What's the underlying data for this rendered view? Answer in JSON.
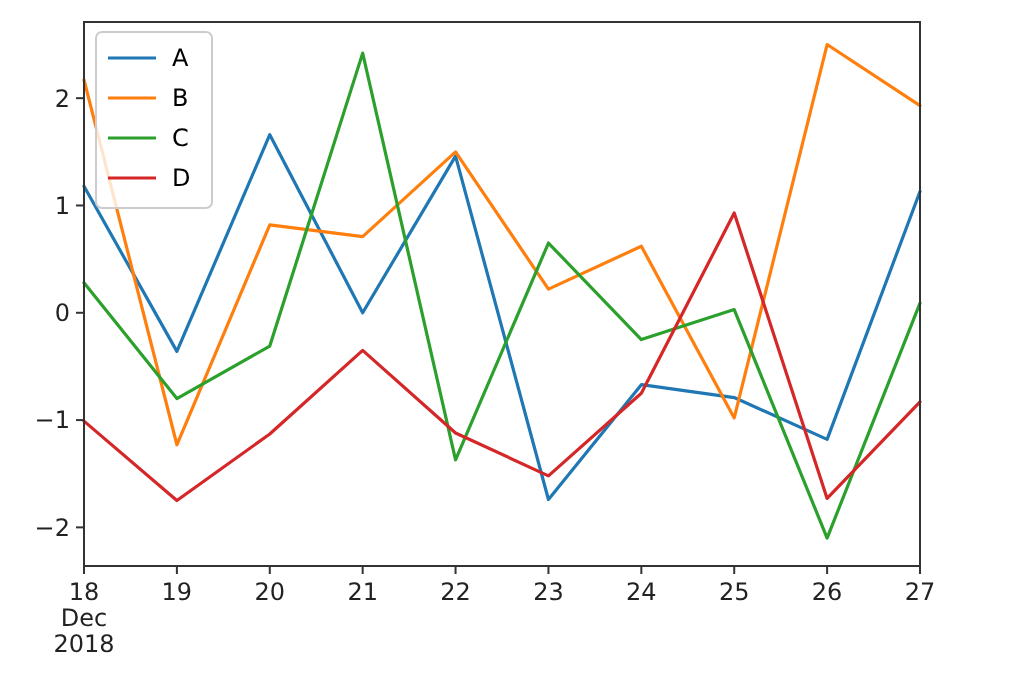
{
  "chart_data": {
    "type": "line",
    "x": [
      "2018-12-18",
      "2018-12-19",
      "2018-12-20",
      "2018-12-21",
      "2018-12-22",
      "2018-12-23",
      "2018-12-24",
      "2018-12-25",
      "2018-12-26",
      "2018-12-27"
    ],
    "series": [
      {
        "name": "A",
        "color": "#1f77b4",
        "values": [
          1.18,
          -0.36,
          1.66,
          0.0,
          1.46,
          -1.74,
          -0.67,
          -0.79,
          -1.18,
          1.13
        ]
      },
      {
        "name": "B",
        "color": "#ff7f0e",
        "values": [
          2.17,
          -1.23,
          0.82,
          0.71,
          1.5,
          0.22,
          0.62,
          -0.98,
          2.5,
          1.93
        ]
      },
      {
        "name": "C",
        "color": "#2ca02c",
        "values": [
          0.28,
          -0.8,
          -0.31,
          2.42,
          -1.37,
          0.65,
          -0.25,
          0.03,
          -2.1,
          0.09
        ]
      },
      {
        "name": "D",
        "color": "#d62728",
        "values": [
          -1.01,
          -1.75,
          -1.13,
          -0.35,
          -1.12,
          -1.52,
          -0.75,
          0.93,
          -1.73,
          -0.83
        ]
      }
    ],
    "xlim": [
      "2018-12-18",
      "2018-12-27"
    ],
    "xticks": [
      {
        "value": "2018-12-18",
        "label": "18\nDec\n2018"
      },
      {
        "value": "2018-12-19",
        "label": "19"
      },
      {
        "value": "2018-12-20",
        "label": "20"
      },
      {
        "value": "2018-12-21",
        "label": "21"
      },
      {
        "value": "2018-12-22",
        "label": "22"
      },
      {
        "value": "2018-12-23",
        "label": "23"
      },
      {
        "value": "2018-12-24",
        "label": "24"
      },
      {
        "value": "2018-12-25",
        "label": "25"
      },
      {
        "value": "2018-12-26",
        "label": "26"
      },
      {
        "value": "2018-12-27",
        "label": "27"
      }
    ],
    "ylim": [
      -2.36,
      2.71
    ],
    "yticks": [
      {
        "value": -2,
        "label": "−2"
      },
      {
        "value": -1,
        "label": "−1"
      },
      0,
      1,
      2
    ],
    "legend": "top left",
    "grid": false,
    "marker": "none",
    "line_style": "solid"
  }
}
